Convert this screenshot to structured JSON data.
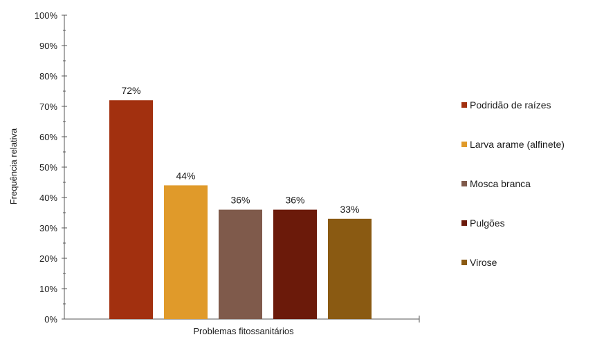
{
  "chart_data": {
    "type": "bar",
    "xlabel": "Problemas fitossanitários",
    "ylabel": "Frequência relativa",
    "ylim": [
      0,
      100
    ],
    "yticks": [
      "0%",
      "10%",
      "20%",
      "30%",
      "40%",
      "50%",
      "60%",
      "70%",
      "80%",
      "90%",
      "100%"
    ],
    "grid": false,
    "legend_position": "right",
    "series": [
      {
        "name": "Podridão de raízes",
        "value": 72,
        "label": "72%",
        "color": "#a2300f"
      },
      {
        "name": "Larva arame (alfinete)",
        "value": 44,
        "label": "44%",
        "color": "#e09a2a"
      },
      {
        "name": "Mosca branca",
        "value": 36,
        "label": "36%",
        "color": "#7f5a4b"
      },
      {
        "name": "Pulgões",
        "value": 36,
        "label": "36%",
        "color": "#6b1a0a"
      },
      {
        "name": "Virose",
        "value": 33,
        "label": "33%",
        "color": "#8a5a12"
      }
    ]
  }
}
